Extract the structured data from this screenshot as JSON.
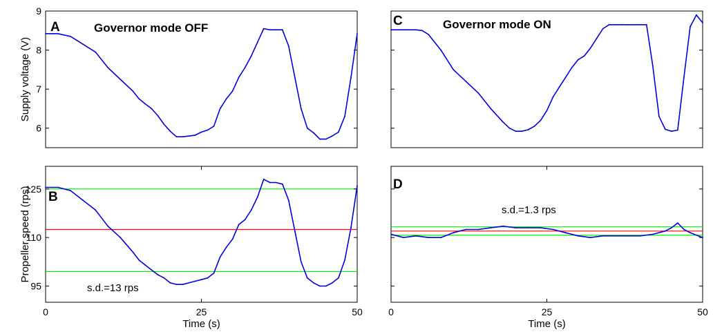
{
  "chart_data": [
    {
      "panel_label": "A",
      "type": "line",
      "title": "Governor mode OFF",
      "xlabel": "",
      "ylabel": "Supply voltage (V)",
      "xlim": [
        0,
        50
      ],
      "ylim": [
        5.5,
        9
      ],
      "yticks": [
        6,
        7,
        8,
        9
      ],
      "xticks": [],
      "series": [
        {
          "color": "#0000dd",
          "x": [
            0,
            2,
            4,
            6,
            8,
            10,
            12,
            14,
            15,
            16,
            17,
            18,
            19,
            20,
            21,
            22,
            24,
            25,
            26,
            27,
            28,
            29,
            30,
            31,
            32,
            33,
            34,
            35,
            36,
            37,
            38,
            39,
            40,
            41,
            42,
            43,
            44,
            45,
            46,
            47,
            48,
            49,
            50
          ],
          "y": [
            8.42,
            8.42,
            8.35,
            8.15,
            7.95,
            7.55,
            7.25,
            6.95,
            6.75,
            6.62,
            6.5,
            6.32,
            6.1,
            5.92,
            5.78,
            5.78,
            5.82,
            5.9,
            5.95,
            6.05,
            6.5,
            6.75,
            6.95,
            7.3,
            7.55,
            7.85,
            8.2,
            8.55,
            8.52,
            8.52,
            8.52,
            8.1,
            7.3,
            6.5,
            6.0,
            5.88,
            5.72,
            5.72,
            5.8,
            5.9,
            6.3,
            7.3,
            8.42
          ]
        }
      ],
      "reference_lines": [],
      "annotations": []
    },
    {
      "panel_label": "B",
      "type": "line",
      "title": "",
      "xlabel": "Time (s)",
      "ylabel": "Propeller speed (rps)",
      "xlim": [
        0,
        50
      ],
      "ylim": [
        90,
        132
      ],
      "yticks": [
        95,
        110,
        125
      ],
      "xticks": [
        0,
        25,
        50
      ],
      "series": [
        {
          "color": "#0000dd",
          "x": [
            0,
            2,
            4,
            6,
            8,
            10,
            12,
            14,
            15,
            16,
            17,
            18,
            19,
            20,
            21,
            22,
            24,
            25,
            26,
            27,
            28,
            29,
            30,
            31,
            32,
            33,
            34,
            35,
            36,
            37,
            38,
            39,
            40,
            41,
            42,
            43,
            44,
            45,
            46,
            47,
            48,
            49,
            50
          ],
          "y": [
            125.5,
            125.5,
            124.5,
            121.5,
            118.5,
            113.5,
            110,
            105.5,
            103,
            101.5,
            100,
            98.5,
            97.5,
            96,
            95.5,
            95.5,
            96.5,
            97,
            97.5,
            99,
            104,
            107,
            109.5,
            114,
            115.5,
            118.5,
            122.5,
            128,
            127,
            127,
            126.5,
            121.5,
            112,
            102.5,
            97.5,
            96,
            95,
            95,
            96,
            97.5,
            103,
            113,
            126
          ]
        }
      ],
      "reference_lines": [
        {
          "y": 112.5,
          "color": "#ff0000"
        },
        {
          "y": 125,
          "color": "#00ee00"
        },
        {
          "y": 99.5,
          "color": "#00ee00"
        }
      ],
      "annotations": [
        "s.d.=13 rps"
      ]
    },
    {
      "panel_label": "C",
      "type": "line",
      "title": "Governor mode ON",
      "xlabel": "",
      "ylabel": "",
      "xlim": [
        0,
        50
      ],
      "ylim": [
        5.5,
        9
      ],
      "yticks": [
        6,
        7,
        8,
        9
      ],
      "xticks": [],
      "series": [
        {
          "color": "#0000dd",
          "x": [
            0,
            2,
            4,
            5,
            6,
            8,
            10,
            12,
            14,
            16,
            18,
            19,
            20,
            21,
            22,
            23,
            24,
            25,
            26,
            27,
            28,
            29,
            30,
            31,
            32,
            33,
            34,
            35,
            36,
            37,
            38,
            39,
            40,
            41,
            42,
            43,
            44,
            45,
            46,
            47,
            48,
            49,
            50
          ],
          "y": [
            8.52,
            8.52,
            8.52,
            8.5,
            8.4,
            8.0,
            7.5,
            7.2,
            6.9,
            6.5,
            6.15,
            6.0,
            5.92,
            5.92,
            5.96,
            6.05,
            6.2,
            6.45,
            6.8,
            7.05,
            7.3,
            7.55,
            7.75,
            7.85,
            8.05,
            8.3,
            8.55,
            8.65,
            8.65,
            8.65,
            8.65,
            8.65,
            8.65,
            8.65,
            7.6,
            6.3,
            5.97,
            5.92,
            5.95,
            7.3,
            8.6,
            8.9,
            8.7
          ]
        }
      ],
      "reference_lines": [],
      "annotations": []
    },
    {
      "panel_label": "D",
      "type": "line",
      "title": "",
      "xlabel": "Time (s)",
      "ylabel": "",
      "xlim": [
        0,
        50
      ],
      "ylim": [
        90,
        132
      ],
      "yticks": [
        95,
        110,
        125
      ],
      "xticks": [
        0,
        25,
        50
      ],
      "series": [
        {
          "color": "#0000dd",
          "x": [
            0,
            2,
            4,
            6,
            8,
            10,
            12,
            14,
            16,
            18,
            20,
            22,
            24,
            26,
            28,
            30,
            32,
            34,
            36,
            38,
            40,
            42,
            44,
            45,
            46,
            47,
            48,
            50
          ],
          "y": [
            111,
            110,
            110.5,
            110,
            110,
            111.5,
            112.5,
            112.5,
            113,
            113.5,
            113,
            113,
            113,
            112.5,
            111.5,
            110.5,
            110,
            110.5,
            110.5,
            110.5,
            110.5,
            111,
            112,
            113,
            114.5,
            112.5,
            111.5,
            110
          ]
        }
      ],
      "reference_lines": [
        {
          "y": 112,
          "color": "#ff0000"
        },
        {
          "y": 113.3,
          "color": "#00ee00"
        },
        {
          "y": 110.7,
          "color": "#00ee00"
        }
      ],
      "annotations": [
        "s.d.=1.3 rps"
      ]
    }
  ]
}
